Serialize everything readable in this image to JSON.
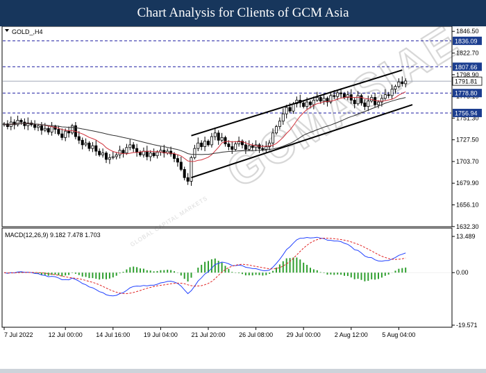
{
  "banner": {
    "title": "Chart Analysis for Clients of GCM Asia"
  },
  "watermark": {
    "text": "GCMASIAE",
    "subtext": "GLOBAL CAPITAL MARKETS"
  },
  "colors": {
    "banner_bg": "#17365c",
    "candle_bull": "#008000",
    "candle_bear": "#c00000",
    "ma_fast": "#d0303a",
    "ma_slow": "#303030",
    "hline": "#1a1aa0",
    "macd_line": "#2040ff",
    "signal_line": "#e02020",
    "histogram": "#2e9e2e",
    "level_box_bg": "#1b3d8f",
    "price_box_bg": "#ffffff"
  },
  "chart_data": [
    {
      "type": "candlestick",
      "symbol": "GOLD_,H4",
      "y_ticks": [
        1846.5,
        1822.7,
        1798.9,
        1775.1,
        1751.3,
        1727.5,
        1703.7,
        1679.9,
        1656.1,
        1632.3
      ],
      "y_tick_labels": [
        "1846.50",
        "1822.70",
        "1798.90",
        "1775.10",
        "1751.30",
        "1727.50",
        "1703.70",
        "1679.90",
        "1656.10",
        "1632.30"
      ],
      "ylim": [
        1632.3,
        1846.5
      ],
      "x_ticks": [
        {
          "index": 0,
          "label": "7 Jul 2022"
        },
        {
          "index": 18,
          "label": "12 Jul 00:00"
        },
        {
          "index": 32,
          "label": "14 Jul 16:00"
        },
        {
          "index": 46,
          "label": "19 Jul 04:00"
        },
        {
          "index": 60,
          "label": "21 Jul 20:00"
        },
        {
          "index": 74,
          "label": "26 Jul 08:00"
        },
        {
          "index": 88,
          "label": "29 Jul 00:00"
        },
        {
          "index": 102,
          "label": "2 Aug 12:00"
        },
        {
          "index": 116,
          "label": "5 Aug 04:00"
        }
      ],
      "levels": [
        {
          "value": 1836.09,
          "label": "1836.09"
        },
        {
          "value": 1807.66,
          "label": "1807.66"
        },
        {
          "value": 1778.8,
          "label": "1778.80"
        },
        {
          "value": 1756.94,
          "label": "1756.94"
        }
      ],
      "current_price": {
        "value": 1791.81,
        "label": "1791.81"
      },
      "channel": {
        "upper": [
          {
            "x": 55,
            "y": 1732
          },
          {
            "x": 117,
            "y": 1804
          }
        ],
        "lower": [
          {
            "x": 55,
            "y": 1686
          },
          {
            "x": 120,
            "y": 1766
          }
        ]
      },
      "closes": [
        1745,
        1742,
        1747,
        1744,
        1749,
        1747,
        1743,
        1746,
        1744,
        1741,
        1743,
        1738,
        1740,
        1736,
        1742,
        1739,
        1734,
        1730,
        1737,
        1735,
        1743,
        1731,
        1727,
        1722,
        1724,
        1718,
        1721,
        1715,
        1711,
        1713,
        1706,
        1708,
        1709,
        1711,
        1716,
        1713,
        1719,
        1722,
        1718,
        1714,
        1711,
        1715,
        1709,
        1713,
        1710,
        1714,
        1716,
        1713,
        1715,
        1712,
        1707,
        1703,
        1695,
        1686,
        1682,
        1708,
        1718,
        1724,
        1720,
        1726,
        1722,
        1731,
        1735,
        1727,
        1730,
        1723,
        1720,
        1717,
        1723,
        1726,
        1722,
        1717,
        1721,
        1719,
        1722,
        1718,
        1717,
        1720,
        1724,
        1735,
        1742,
        1748,
        1756,
        1763,
        1759,
        1767,
        1771,
        1768,
        1764,
        1769,
        1766,
        1771,
        1774,
        1770,
        1773,
        1769,
        1776,
        1775,
        1779,
        1778,
        1774,
        1777,
        1771,
        1767,
        1776,
        1768,
        1764,
        1770,
        1774,
        1766,
        1769,
        1773,
        1777,
        1776,
        1783,
        1786,
        1791,
        1789,
        1792
      ]
    },
    {
      "type": "macd",
      "label": "MACD(12,26,9) 9.182 7.478 1.703",
      "ylim": [
        -19.571,
        13.489
      ],
      "y_ticks": [
        13.489,
        0.0,
        -19.571
      ],
      "y_tick_labels": [
        "13.489",
        "0.00",
        "-19.571"
      ]
    }
  ]
}
